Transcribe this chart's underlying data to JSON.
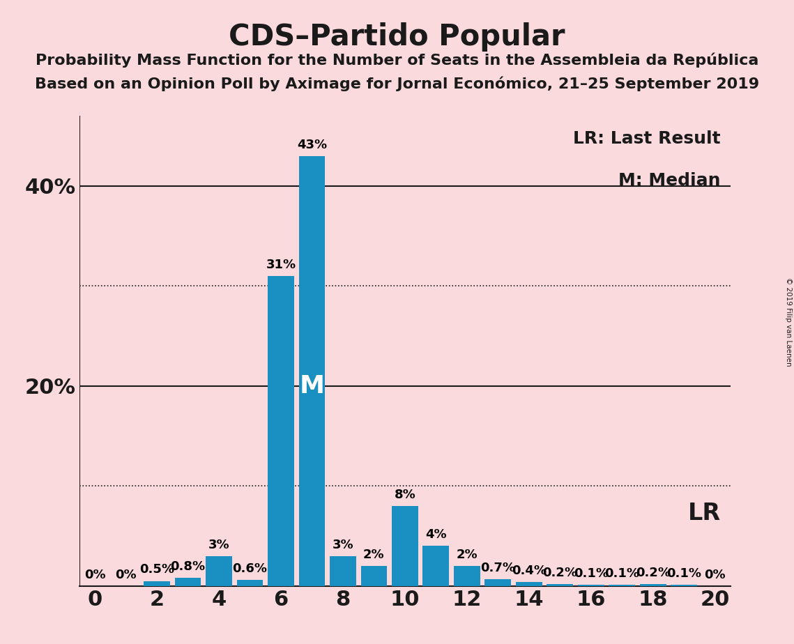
{
  "title": "CDS–Partido Popular",
  "subtitle1": "Probability Mass Function for the Number of Seats in the Assembleia da República",
  "subtitle2": "Based on an Opinion Poll by Aximage for Jornal Económico, 21–25 September 2019",
  "copyright": "© 2019 Filip van Laenen",
  "seats": [
    0,
    1,
    2,
    3,
    4,
    5,
    6,
    7,
    8,
    9,
    10,
    11,
    12,
    13,
    14,
    15,
    16,
    17,
    18,
    19,
    20
  ],
  "probabilities": [
    0.0,
    0.0,
    0.5,
    0.8,
    3.0,
    0.6,
    31.0,
    43.0,
    3.0,
    2.0,
    8.0,
    4.0,
    2.0,
    0.7,
    0.4,
    0.2,
    0.1,
    0.1,
    0.2,
    0.1,
    0.0
  ],
  "labels": [
    "0%",
    "0%",
    "0.5%",
    "0.8%",
    "3%",
    "0.6%",
    "31%",
    "43%",
    "3%",
    "2%",
    "8%",
    "4%",
    "2%",
    "0.7%",
    "0.4%",
    "0.2%",
    "0.1%",
    "0.1%",
    "0.2%",
    "0.1%",
    "0%"
  ],
  "bar_color": "#1a8fc1",
  "background_color": "#fadadd",
  "median_seat": 7,
  "lr_label": "LR",
  "median_label": "M",
  "legend_lr": "LR: Last Result",
  "legend_m": "M: Median",
  "ylim": [
    0,
    47
  ],
  "xlim": [
    -0.5,
    20.5
  ],
  "dotted_lines": [
    10,
    30
  ],
  "solid_lines": [
    20,
    40
  ],
  "title_fontsize": 30,
  "subtitle_fontsize": 16,
  "bar_label_fontsize": 13,
  "legend_fontsize": 18,
  "median_label_fontsize": 26,
  "lr_annot_fontsize": 24,
  "xtick_fontsize": 22,
  "ytick_fontsize": 22
}
